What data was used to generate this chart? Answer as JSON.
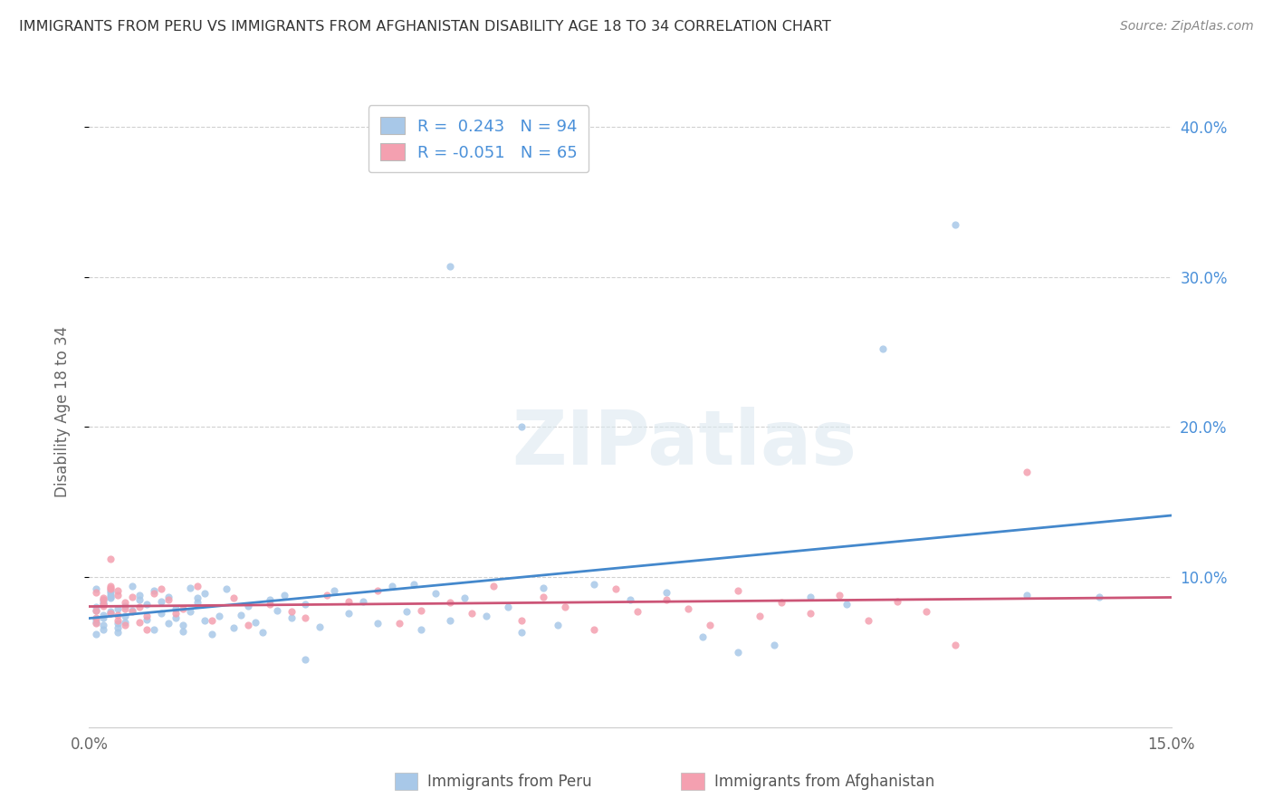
{
  "title": "IMMIGRANTS FROM PERU VS IMMIGRANTS FROM AFGHANISTAN DISABILITY AGE 18 TO 34 CORRELATION CHART",
  "source": "Source: ZipAtlas.com",
  "ylabel_label": "Disability Age 18 to 34",
  "xlim": [
    0.0,
    0.15
  ],
  "ylim": [
    0.0,
    0.42
  ],
  "xticks": [
    0.0,
    0.05,
    0.1,
    0.15
  ],
  "yticks": [
    0.1,
    0.2,
    0.3,
    0.4
  ],
  "ytick_labels_right": [
    "10.0%",
    "20.0%",
    "30.0%",
    "40.0%"
  ],
  "xtick_labels": [
    "0.0%",
    "",
    "",
    "15.0%"
  ],
  "peru_color": "#a8c8e8",
  "afghanistan_color": "#f4a0b0",
  "peru_line_color": "#4488cc",
  "afghanistan_line_color": "#cc5577",
  "r_peru": 0.243,
  "n_peru": 94,
  "r_afghanistan": -0.051,
  "n_afghanistan": 65,
  "watermark": "ZIPatlas",
  "peru_x": [
    0.001,
    0.002,
    0.001,
    0.002,
    0.003,
    0.001,
    0.002,
    0.003,
    0.001,
    0.002,
    0.001,
    0.002,
    0.003,
    0.001,
    0.002,
    0.004,
    0.003,
    0.002,
    0.003,
    0.004,
    0.003,
    0.005,
    0.004,
    0.003,
    0.005,
    0.004,
    0.006,
    0.005,
    0.007,
    0.006,
    0.008,
    0.007,
    0.009,
    0.008,
    0.01,
    0.009,
    0.011,
    0.01,
    0.012,
    0.011,
    0.013,
    0.012,
    0.014,
    0.013,
    0.015,
    0.014,
    0.016,
    0.015,
    0.017,
    0.016,
    0.018,
    0.02,
    0.019,
    0.022,
    0.021,
    0.023,
    0.025,
    0.024,
    0.026,
    0.027,
    0.028,
    0.03,
    0.032,
    0.034,
    0.036,
    0.038,
    0.04,
    0.042,
    0.044,
    0.046,
    0.048,
    0.05,
    0.052,
    0.055,
    0.058,
    0.06,
    0.063,
    0.065,
    0.07,
    0.075,
    0.08,
    0.085,
    0.09,
    0.095,
    0.1,
    0.105,
    0.11,
    0.12,
    0.13,
    0.14,
    0.05,
    0.06,
    0.045,
    0.03
  ],
  "peru_y": [
    0.08,
    0.085,
    0.072,
    0.065,
    0.09,
    0.078,
    0.082,
    0.088,
    0.07,
    0.075,
    0.092,
    0.068,
    0.076,
    0.062,
    0.083,
    0.079,
    0.086,
    0.073,
    0.077,
    0.069,
    0.091,
    0.074,
    0.066,
    0.087,
    0.081,
    0.063,
    0.094,
    0.07,
    0.085,
    0.078,
    0.072,
    0.088,
    0.065,
    0.082,
    0.076,
    0.091,
    0.069,
    0.084,
    0.073,
    0.087,
    0.064,
    0.079,
    0.093,
    0.068,
    0.083,
    0.077,
    0.071,
    0.086,
    0.062,
    0.089,
    0.074,
    0.066,
    0.092,
    0.081,
    0.075,
    0.07,
    0.085,
    0.063,
    0.078,
    0.088,
    0.073,
    0.082,
    0.067,
    0.091,
    0.076,
    0.084,
    0.069,
    0.094,
    0.077,
    0.065,
    0.089,
    0.071,
    0.086,
    0.074,
    0.08,
    0.063,
    0.093,
    0.068,
    0.095,
    0.085,
    0.09,
    0.06,
    0.05,
    0.055,
    0.087,
    0.082,
    0.252,
    0.335,
    0.088,
    0.087,
    0.307,
    0.2,
    0.095,
    0.045
  ],
  "afghanistan_x": [
    0.001,
    0.002,
    0.001,
    0.003,
    0.002,
    0.001,
    0.004,
    0.003,
    0.002,
    0.001,
    0.003,
    0.004,
    0.002,
    0.005,
    0.003,
    0.004,
    0.003,
    0.005,
    0.004,
    0.006,
    0.005,
    0.007,
    0.006,
    0.008,
    0.007,
    0.009,
    0.008,
    0.01,
    0.012,
    0.011,
    0.013,
    0.015,
    0.017,
    0.02,
    0.022,
    0.025,
    0.028,
    0.03,
    0.033,
    0.036,
    0.04,
    0.043,
    0.046,
    0.05,
    0.053,
    0.056,
    0.06,
    0.063,
    0.066,
    0.07,
    0.073,
    0.076,
    0.08,
    0.083,
    0.086,
    0.09,
    0.093,
    0.096,
    0.1,
    0.104,
    0.108,
    0.112,
    0.116,
    0.12,
    0.13
  ],
  "afghanistan_y": [
    0.09,
    0.085,
    0.078,
    0.092,
    0.082,
    0.073,
    0.088,
    0.076,
    0.081,
    0.069,
    0.094,
    0.071,
    0.086,
    0.079,
    0.093,
    0.075,
    0.112,
    0.068,
    0.091,
    0.077,
    0.083,
    0.07,
    0.087,
    0.074,
    0.08,
    0.089,
    0.065,
    0.092,
    0.076,
    0.085,
    0.079,
    0.094,
    0.071,
    0.086,
    0.068,
    0.082,
    0.077,
    0.073,
    0.088,
    0.084,
    0.091,
    0.069,
    0.078,
    0.083,
    0.076,
    0.094,
    0.071,
    0.087,
    0.08,
    0.065,
    0.092,
    0.077,
    0.085,
    0.079,
    0.068,
    0.091,
    0.074,
    0.083,
    0.076,
    0.088,
    0.071,
    0.084,
    0.077,
    0.055,
    0.17
  ]
}
